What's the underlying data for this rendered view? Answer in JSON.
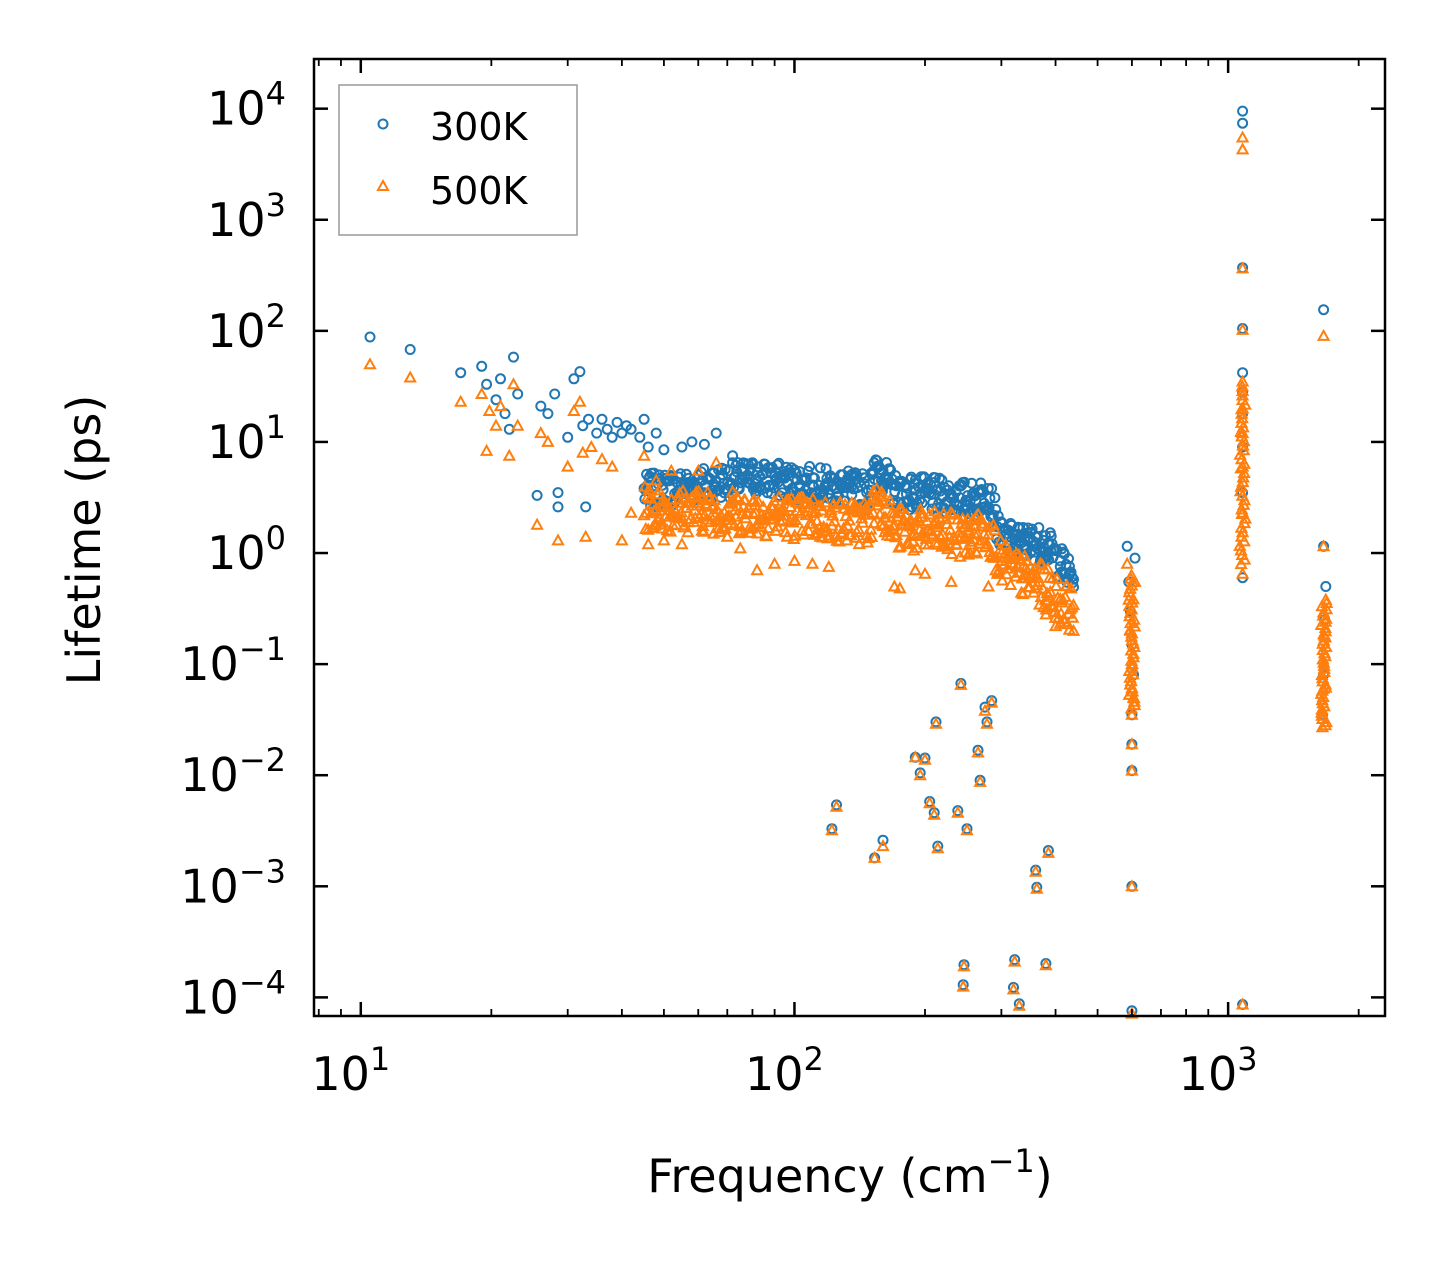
{
  "chart_data": {
    "type": "scatter",
    "xlabel": "Frequency (cm",
    "xlabel_sup": "−1",
    "xlabel_tail": ")",
    "ylabel": "Lifetime (ps)",
    "xscale": "log",
    "yscale": "log",
    "xlim": [
      7.8,
      2300
    ],
    "ylim": [
      6.8e-05,
      28000
    ],
    "x_ticks": [
      {
        "base": "10",
        "exp": "1",
        "value": 10
      },
      {
        "base": "10",
        "exp": "2",
        "value": 100
      },
      {
        "base": "10",
        "exp": "3",
        "value": 1000
      }
    ],
    "y_ticks": [
      {
        "base": "10",
        "exp": "4",
        "value": 10000
      },
      {
        "base": "10",
        "exp": "3",
        "value": 1000
      },
      {
        "base": "10",
        "exp": "2",
        "value": 100
      },
      {
        "base": "10",
        "exp": "1",
        "value": 10
      },
      {
        "base": "10",
        "exp": "0",
        "value": 1
      },
      {
        "base": "10",
        "exp": "−1",
        "value": 0.1
      },
      {
        "base": "10",
        "exp": "−2",
        "value": 0.01
      },
      {
        "base": "10",
        "exp": "−3",
        "value": 0.001
      },
      {
        "base": "10",
        "exp": "−4",
        "value": 0.0001
      }
    ],
    "legend_position": "top-left",
    "series": [
      {
        "name": "300K",
        "marker": "circle",
        "color": "#1f77b4",
        "points": [
          [
            10.5,
            88
          ],
          [
            13,
            68
          ],
          [
            17,
            42
          ],
          [
            19,
            48
          ],
          [
            19.5,
            33
          ],
          [
            20.5,
            24
          ],
          [
            21,
            37
          ],
          [
            21.5,
            18
          ],
          [
            22,
            13
          ],
          [
            22.5,
            58
          ],
          [
            23,
            27
          ],
          [
            25.5,
            3.3
          ],
          [
            26,
            21
          ],
          [
            27,
            18
          ],
          [
            28,
            27
          ],
          [
            28.5,
            2.6
          ],
          [
            28.5,
            3.5
          ],
          [
            30,
            11
          ],
          [
            31,
            37
          ],
          [
            32,
            43
          ],
          [
            32.5,
            14
          ],
          [
            33,
            2.6
          ],
          [
            33.5,
            16
          ],
          [
            35,
            12
          ],
          [
            36,
            16
          ],
          [
            37,
            13
          ],
          [
            38,
            11
          ],
          [
            39,
            15
          ],
          [
            40,
            12
          ],
          [
            41,
            14
          ],
          [
            42,
            13
          ],
          [
            44,
            11
          ],
          [
            45,
            16
          ],
          [
            46,
            9
          ],
          [
            48,
            12
          ],
          [
            50,
            8.5
          ],
          [
            55,
            9
          ],
          [
            58,
            10
          ],
          [
            62,
            9.5
          ],
          [
            66,
            12
          ],
          [
            72,
            7.5
          ],
          [
            80,
            6.5
          ],
          [
            88,
            5.8
          ],
          [
            95,
            5.1
          ],
          [
            100,
            5.6
          ],
          [
            104,
            4.6
          ],
          [
            110,
            4.1
          ],
          [
            118,
            3.9
          ],
          [
            125,
            3.8
          ],
          [
            135,
            3.9
          ],
          [
            145,
            4.2
          ],
          [
            150,
            5.2
          ],
          [
            155,
            6.8
          ],
          [
            160,
            5.5
          ],
          [
            170,
            4.1
          ],
          [
            180,
            4.0
          ],
          [
            190,
            3.7
          ],
          [
            200,
            3.5
          ],
          [
            210,
            3.4
          ],
          [
            220,
            3.2
          ],
          [
            230,
            3.1
          ],
          [
            240,
            2.7
          ],
          [
            250,
            2.9
          ],
          [
            260,
            3.3
          ],
          [
            270,
            3.6
          ],
          [
            280,
            2.5
          ],
          [
            300,
            1.9
          ],
          [
            320,
            1.45
          ],
          [
            340,
            1.35
          ],
          [
            360,
            1.4
          ],
          [
            375,
            1.3
          ],
          [
            390,
            1.05
          ],
          [
            410,
            0.85
          ],
          [
            430,
            0.65
          ],
          [
            440,
            0.58
          ],
          [
            585,
            1.15
          ],
          [
            590,
            0.55
          ],
          [
            595,
            0.3
          ],
          [
            600,
            0.15
          ],
          [
            605,
            0.08
          ],
          [
            610,
            0.9
          ],
          [
            600,
            0.035
          ],
          [
            600,
            0.019
          ],
          [
            600,
            0.011
          ],
          [
            600,
            0.001
          ],
          [
            600,
            7.58e-05
          ],
          [
            1080,
            9500
          ],
          [
            1080,
            7400
          ],
          [
            1080,
            370
          ],
          [
            1080,
            105
          ],
          [
            1080,
            42
          ],
          [
            1080,
            28
          ],
          [
            1080,
            18
          ],
          [
            1080,
            9
          ],
          [
            1080,
            3.5
          ],
          [
            1080,
            0.6
          ],
          [
            1080,
            8.63e-05
          ],
          [
            1660,
            155
          ],
          [
            1660,
            1.15
          ],
          [
            1680,
            0.5
          ],
          [
            1670,
            0.25
          ],
          [
            1660,
            0.08
          ],
          [
            1650,
            0.035
          ],
          [
            122,
            0.0033
          ],
          [
            125,
            0.0054
          ],
          [
            153,
            0.0018
          ],
          [
            160,
            0.0026
          ],
          [
            190,
            0.0145
          ],
          [
            195,
            0.0105
          ],
          [
            200,
            0.0143
          ],
          [
            205,
            0.0058
          ],
          [
            210,
            0.0046
          ],
          [
            212,
            0.0302
          ],
          [
            214,
            0.0023
          ],
          [
            238,
            0.0048
          ],
          [
            242,
            0.067
          ],
          [
            245,
            0.00013
          ],
          [
            246,
            0.000197
          ],
          [
            250,
            0.0033
          ],
          [
            265,
            0.0168
          ],
          [
            268,
            0.009
          ],
          [
            275,
            0.041
          ],
          [
            278,
            0.0302
          ],
          [
            285,
            0.047
          ],
          [
            320,
            0.000123
          ],
          [
            322,
            0.000219
          ],
          [
            330,
            8.76e-05
          ],
          [
            360,
            0.0014
          ],
          [
            362,
            0.00098
          ],
          [
            380,
            0.000202
          ],
          [
            385,
            0.0021
          ]
        ],
        "band": {
          "x_start": 45,
          "x_end": 440,
          "count": 520,
          "log_y_at": [
            [
              45,
              0.55
            ],
            [
              80,
              0.68
            ],
            [
              150,
              0.56
            ],
            [
              155,
              0.78
            ],
            [
              170,
              0.56
            ],
            [
              260,
              0.48
            ],
            [
              280,
              0.56
            ],
            [
              300,
              0.12
            ],
            [
              380,
              0.08
            ],
            [
              440,
              -0.24
            ]
          ],
          "log_spread": 0.16
        }
      },
      {
        "name": "500K",
        "marker": "triangle",
        "color": "#ff7f0e",
        "points": [
          [
            10.5,
            50
          ],
          [
            13,
            38
          ],
          [
            17,
            23
          ],
          [
            19,
            27
          ],
          [
            19.5,
            8.3
          ],
          [
            19.8,
            19
          ],
          [
            20.5,
            14
          ],
          [
            21,
            21
          ],
          [
            22,
            7.5
          ],
          [
            22.5,
            33
          ],
          [
            23,
            14
          ],
          [
            25.5,
            1.8
          ],
          [
            26,
            12
          ],
          [
            27,
            10
          ],
          [
            28.5,
            1.3
          ],
          [
            30,
            6
          ],
          [
            31,
            19
          ],
          [
            32,
            23
          ],
          [
            32.5,
            8
          ],
          [
            33,
            1.4
          ],
          [
            34,
            9
          ],
          [
            36,
            7
          ],
          [
            38,
            6
          ],
          [
            40,
            1.3
          ],
          [
            42,
            2.3
          ],
          [
            45,
            7.5
          ],
          [
            46,
            1.2
          ],
          [
            48,
            4.5
          ],
          [
            50,
            1.3
          ],
          [
            52,
            5.5
          ],
          [
            55,
            1.2
          ],
          [
            60,
            5.5
          ],
          [
            66,
            6.5
          ],
          [
            70,
            1.4
          ],
          [
            75,
            1.1
          ],
          [
            82,
            0.7
          ],
          [
            90,
            0.8
          ],
          [
            100,
            0.85
          ],
          [
            110,
            0.8
          ],
          [
            120,
            0.75
          ],
          [
            145,
            2.8
          ],
          [
            152,
            3.6
          ],
          [
            160,
            2.9
          ],
          [
            170,
            0.5
          ],
          [
            175,
            0.48
          ],
          [
            190,
            0.7
          ],
          [
            200,
            0.65
          ],
          [
            210,
            1.8
          ],
          [
            230,
            0.55
          ],
          [
            250,
            1.6
          ],
          [
            262,
            2.1
          ],
          [
            270,
            2.0
          ],
          [
            280,
            0.5
          ],
          [
            300,
            1.0
          ],
          [
            320,
            0.78
          ],
          [
            340,
            0.6
          ],
          [
            360,
            0.48
          ],
          [
            380,
            0.28
          ],
          [
            400,
            0.22
          ],
          [
            410,
            0.23
          ],
          [
            440,
            0.34
          ],
          [
            585,
            0.8
          ],
          [
            590,
            0.38
          ],
          [
            595,
            0.2
          ],
          [
            600,
            0.1
          ],
          [
            605,
            0.05
          ],
          [
            610,
            0.55
          ],
          [
            600,
            0.035
          ],
          [
            600,
            0.019
          ],
          [
            600,
            0.011
          ],
          [
            600,
            0.001
          ],
          [
            600,
            7.15e-05
          ],
          [
            1080,
            5500
          ],
          [
            1080,
            4300
          ],
          [
            1080,
            365
          ],
          [
            1080,
            102
          ],
          [
            1080,
            35
          ],
          [
            1080,
            20
          ],
          [
            1080,
            12
          ],
          [
            1080,
            6
          ],
          [
            1080,
            2.3
          ],
          [
            1080,
            0.65
          ],
          [
            1080,
            8.63e-05
          ],
          [
            1660,
            90
          ],
          [
            1660,
            1.15
          ],
          [
            1680,
            0.38
          ],
          [
            1670,
            0.18
          ],
          [
            1660,
            0.06
          ],
          [
            1650,
            0.027
          ],
          [
            122,
            0.0032
          ],
          [
            125,
            0.0052
          ],
          [
            153,
            0.0018
          ],
          [
            160,
            0.0023
          ],
          [
            190,
            0.0145
          ],
          [
            195,
            0.01
          ],
          [
            200,
            0.0138
          ],
          [
            205,
            0.0056
          ],
          [
            210,
            0.0044
          ],
          [
            212,
            0.029
          ],
          [
            214,
            0.0022
          ],
          [
            238,
            0.0046
          ],
          [
            242,
            0.065
          ],
          [
            245,
            0.000125
          ],
          [
            246,
            0.00019
          ],
          [
            250,
            0.0032
          ],
          [
            265,
            0.016
          ],
          [
            268,
            0.0087
          ],
          [
            275,
            0.038
          ],
          [
            278,
            0.029
          ],
          [
            285,
            0.045
          ],
          [
            320,
            0.000118
          ],
          [
            322,
            0.00021
          ],
          [
            330,
            8.4e-05
          ],
          [
            360,
            0.00135
          ],
          [
            362,
            0.00095
          ],
          [
            380,
            0.000195
          ],
          [
            385,
            0.002
          ]
        ],
        "band": {
          "x_start": 45,
          "x_end": 440,
          "count": 520,
          "log_y_at": [
            [
              45,
              0.4
            ],
            [
              80,
              0.36
            ],
            [
              150,
              0.26
            ],
            [
              155,
              0.52
            ],
            [
              170,
              0.22
            ],
            [
              260,
              0.14
            ],
            [
              280,
              0.22
            ],
            [
              300,
              -0.1
            ],
            [
              380,
              -0.32
            ],
            [
              440,
              -0.52
            ]
          ],
          "log_spread": 0.2
        },
        "vband": [
          {
            "x": 600,
            "log_y_from": -1.4,
            "log_y_to": -0.2,
            "count": 40
          },
          {
            "x": 1080,
            "log_y_from": -0.1,
            "log_y_to": 1.5,
            "count": 40
          },
          {
            "x": 1665,
            "log_y_from": -1.55,
            "log_y_to": -0.45,
            "count": 40
          }
        ]
      }
    ]
  }
}
